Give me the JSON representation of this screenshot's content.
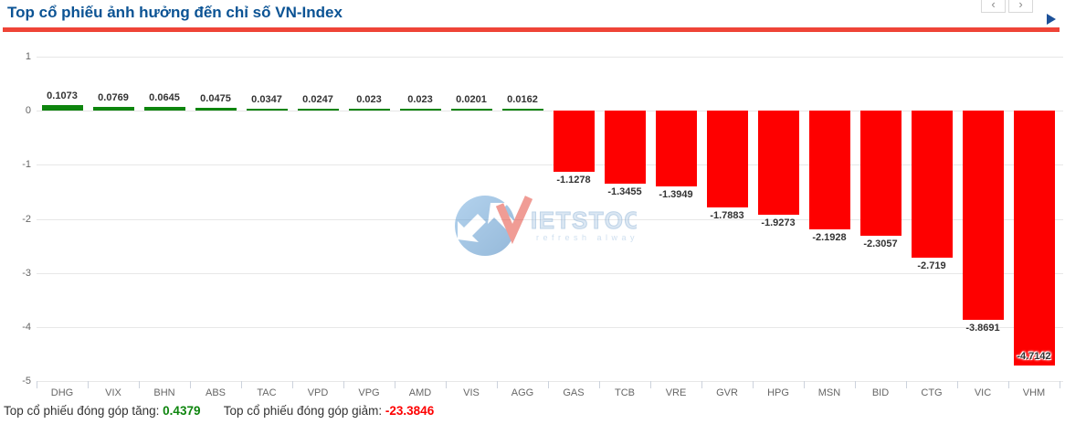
{
  "header": {
    "title": "Top cổ phiếu ảnh hưởng đến chỉ số VN-Index",
    "nav_prev": "‹",
    "nav_next": "›"
  },
  "watermark": {
    "brand_initial": "V",
    "brand_rest": "IETSTOCK",
    "tagline": "refresh always"
  },
  "footer": {
    "gain_label": "Top cổ phiếu đóng góp tăng:",
    "gain_value": "0.4379",
    "loss_label": "Top cổ phiếu đóng góp giảm:",
    "loss_value": "-23.3846"
  },
  "colors": {
    "title": "#0b5394",
    "accent_line": "#ef4437",
    "positive": "#0e850e",
    "negative": "#fe0000",
    "grid": "#e7e7e7",
    "axis_text": "#666666"
  },
  "chart_data": {
    "type": "bar",
    "title": "Top cổ phiếu ảnh hưởng đến chỉ số VN-Index",
    "categories": [
      "DHG",
      "VIX",
      "BHN",
      "ABS",
      "TAC",
      "VPD",
      "VPG",
      "AMD",
      "VIS",
      "AGG",
      "GAS",
      "TCB",
      "VRE",
      "GVR",
      "HPG",
      "MSN",
      "BID",
      "CTG",
      "VIC",
      "VHM"
    ],
    "values": [
      0.1073,
      0.0769,
      0.0645,
      0.0475,
      0.0347,
      0.0247,
      0.023,
      0.023,
      0.0201,
      0.0162,
      -1.1278,
      -1.3455,
      -1.3949,
      -1.7883,
      -1.9273,
      -2.1928,
      -2.3057,
      -2.719,
      -3.8691,
      -4.7142
    ],
    "xlabel": "",
    "ylabel": "",
    "ylim": [
      -5,
      1
    ],
    "yticks": [
      1,
      0,
      -1,
      -2,
      -3,
      -4,
      -5
    ],
    "grid": true,
    "legend": false,
    "value_labels": true,
    "positive_color": "#0e850e",
    "negative_color": "#fe0000"
  }
}
